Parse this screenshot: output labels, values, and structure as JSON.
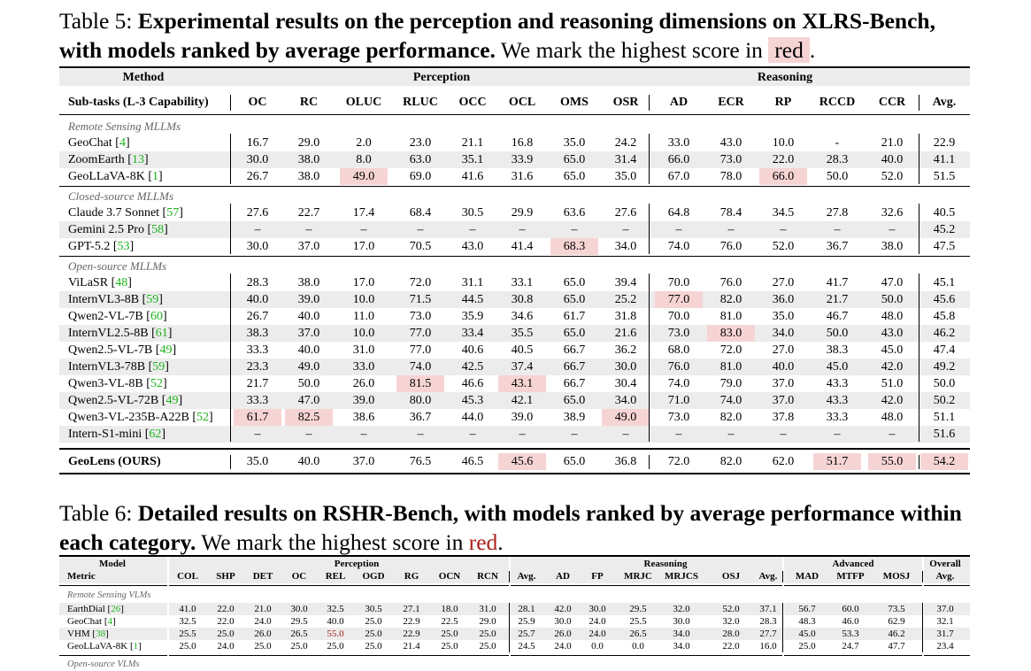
{
  "t5": {
    "prefix": "Table 5: ",
    "bold": "Experimental results on the perception and reasoning dimensions on XLRS-Bench, with models ranked by average performance.",
    "tail": " We mark the highest score in ",
    "mark": "red",
    "end": ".",
    "group_method": "Method",
    "group_perception": "Perception",
    "group_reasoning": "Reasoning",
    "sub_label": "Sub-tasks (L-3 Capability)",
    "cols": [
      "OC",
      "RC",
      "OLUC",
      "RLUC",
      "OCC",
      "OCL",
      "OMS",
      "OSR",
      "AD",
      "ECR",
      "RP",
      "RCCD",
      "CCR",
      "Avg."
    ],
    "sections": [
      {
        "title": "Remote Sensing MLLMs",
        "rows": [
          {
            "name": "GeoChat",
            "ref": "4",
            "v": [
              "16.7",
              "29.0",
              "2.0",
              "23.0",
              "21.1",
              "16.8",
              "35.0",
              "24.2",
              "33.0",
              "43.0",
              "10.0",
              "-",
              "21.0",
              "22.9"
            ],
            "hl": []
          },
          {
            "name": "ZoomEarth",
            "ref": "13",
            "v": [
              "30.0",
              "38.0",
              "8.0",
              "63.0",
              "35.1",
              "33.9",
              "65.0",
              "31.4",
              "66.0",
              "73.0",
              "22.0",
              "28.3",
              "40.0",
              "41.1"
            ],
            "hl": []
          },
          {
            "name": "GeoLLaVA-8K",
            "ref": "1",
            "v": [
              "26.7",
              "38.0",
              "49.0",
              "69.0",
              "41.6",
              "31.6",
              "65.0",
              "35.0",
              "67.0",
              "78.0",
              "66.0",
              "50.0",
              "52.0",
              "51.5"
            ],
            "hl": [
              2,
              10
            ]
          }
        ]
      },
      {
        "title": "Closed-source MLLMs",
        "rows": [
          {
            "name": "Claude 3.7 Sonnet",
            "ref": "57",
            "v": [
              "27.6",
              "22.7",
              "17.4",
              "68.4",
              "30.5",
              "29.9",
              "63.6",
              "27.6",
              "64.8",
              "78.4",
              "34.5",
              "27.8",
              "32.6",
              "40.5"
            ],
            "hl": []
          },
          {
            "name": "Gemini 2.5 Pro",
            "ref": "58",
            "v": [
              "–",
              "–",
              "–",
              "–",
              "–",
              "–",
              "–",
              "–",
              "–",
              "–",
              "–",
              "–",
              "–",
              "45.2"
            ],
            "hl": []
          },
          {
            "name": "GPT-5.2",
            "ref": "53",
            "v": [
              "30.0",
              "37.0",
              "17.0",
              "70.5",
              "43.0",
              "41.4",
              "68.3",
              "34.0",
              "74.0",
              "76.0",
              "52.0",
              "36.7",
              "38.0",
              "47.5"
            ],
            "hl": [
              6
            ]
          }
        ]
      },
      {
        "title": "Open-source MLLMs",
        "rows": [
          {
            "name": "ViLaSR",
            "ref": "48",
            "v": [
              "28.3",
              "38.0",
              "17.0",
              "72.0",
              "31.1",
              "33.1",
              "65.0",
              "39.4",
              "70.0",
              "76.0",
              "27.0",
              "41.7",
              "47.0",
              "45.1"
            ],
            "hl": []
          },
          {
            "name": "InternVL3-8B",
            "ref": "59",
            "v": [
              "40.0",
              "39.0",
              "10.0",
              "71.5",
              "44.5",
              "30.8",
              "65.0",
              "25.2",
              "77.0",
              "82.0",
              "36.0",
              "21.7",
              "50.0",
              "45.6"
            ],
            "hl": [
              8
            ]
          },
          {
            "name": "Qwen2-VL-7B",
            "ref": "60",
            "v": [
              "26.7",
              "40.0",
              "11.0",
              "73.0",
              "35.9",
              "34.6",
              "61.7",
              "31.8",
              "70.0",
              "81.0",
              "35.0",
              "46.7",
              "48.0",
              "45.8"
            ],
            "hl": []
          },
          {
            "name": "InternVL2.5-8B",
            "ref": "61",
            "v": [
              "38.3",
              "37.0",
              "10.0",
              "77.0",
              "33.4",
              "35.5",
              "65.0",
              "21.6",
              "73.0",
              "83.0",
              "34.0",
              "50.0",
              "43.0",
              "46.2"
            ],
            "hl": [
              9
            ]
          },
          {
            "name": "Qwen2.5-VL-7B",
            "ref": "49",
            "v": [
              "33.3",
              "40.0",
              "31.0",
              "77.0",
              "40.6",
              "40.5",
              "66.7",
              "36.2",
              "68.0",
              "72.0",
              "27.0",
              "38.3",
              "45.0",
              "47.4"
            ],
            "hl": []
          },
          {
            "name": "InternVL3-78B",
            "ref": "59",
            "v": [
              "23.3",
              "49.0",
              "33.0",
              "74.0",
              "42.5",
              "37.4",
              "66.7",
              "30.0",
              "76.0",
              "81.0",
              "40.0",
              "45.0",
              "42.0",
              "49.2"
            ],
            "hl": []
          },
          {
            "name": "Qwen3-VL-8B",
            "ref": "52",
            "v": [
              "21.7",
              "50.0",
              "26.0",
              "81.5",
              "46.6",
              "43.1",
              "66.7",
              "30.4",
              "74.0",
              "79.0",
              "37.0",
              "43.3",
              "51.0",
              "50.0"
            ],
            "hl": [
              3,
              5
            ]
          },
          {
            "name": "Qwen2.5-VL-72B",
            "ref": "49",
            "v": [
              "33.3",
              "47.0",
              "39.0",
              "80.0",
              "45.3",
              "42.1",
              "65.0",
              "34.0",
              "71.0",
              "74.0",
              "37.0",
              "43.3",
              "42.0",
              "50.2"
            ],
            "hl": []
          },
          {
            "name": "Qwen3-VL-235B-A22B",
            "ref": "52",
            "v": [
              "61.7",
              "82.5",
              "38.6",
              "36.7",
              "44.0",
              "39.0",
              "38.9",
              "49.0",
              "73.0",
              "82.0",
              "37.8",
              "33.3",
              "48.0",
              "51.1"
            ],
            "hl": [
              0,
              1,
              7
            ]
          },
          {
            "name": "Intern-S1-mini",
            "ref": "62",
            "v": [
              "–",
              "–",
              "–",
              "–",
              "–",
              "–",
              "–",
              "–",
              "–",
              "–",
              "–",
              "–",
              "–",
              "51.6"
            ],
            "hl": []
          }
        ]
      }
    ],
    "ours": {
      "name": "GeoLens (OURS)",
      "v": [
        "35.0",
        "40.0",
        "37.0",
        "76.5",
        "46.5",
        "45.6",
        "65.0",
        "36.8",
        "72.0",
        "82.0",
        "62.0",
        "51.7",
        "55.0",
        "54.2"
      ],
      "hl": [
        5,
        11,
        12,
        13
      ]
    }
  },
  "t6": {
    "prefix": "Table 6: ",
    "bold": "Detailed results on RSHR-Bench, with models ranked by average performance within each category.",
    "tail": " We mark the highest score in ",
    "mark": "red",
    "end": ".",
    "group_model": "Model",
    "group_perception": "Perception",
    "group_reasoning": "Reasoning",
    "group_advanced": "Advanced",
    "group_overall": "Overall",
    "metric_label": "Metric",
    "cols": [
      "COL",
      "SHP",
      "DET",
      "OC",
      "REL",
      "OGD",
      "RG",
      "OCN",
      "RCN",
      "Avg.",
      "AD",
      "FP",
      "MRJC",
      "MRJCS",
      "OSJ",
      "Avg.",
      "MAD",
      "MTFP",
      "MOSJ",
      "Avg."
    ],
    "section1": "Remote Sensing VLMs",
    "rows": [
      {
        "name": "EarthDial",
        "ref": "26",
        "v": [
          "41.0",
          "22.0",
          "21.0",
          "30.0",
          "32.5",
          "30.5",
          "27.1",
          "18.0",
          "31.0",
          "28.1",
          "42.0",
          "30.0",
          "29.5",
          "32.0",
          "52.0",
          "37.1",
          "56.7",
          "60.0",
          "73.5",
          "37.0"
        ],
        "red": []
      },
      {
        "name": "GeoChat",
        "ref": "4",
        "v": [
          "32.5",
          "22.0",
          "24.0",
          "29.5",
          "40.0",
          "25.0",
          "22.9",
          "22.5",
          "29.0",
          "25.9",
          "30.0",
          "24.0",
          "25.5",
          "30.0",
          "32.0",
          "28.3",
          "48.3",
          "46.0",
          "62.9",
          "32.1"
        ],
        "red": []
      },
      {
        "name": "VHM",
        "ref": "38",
        "v": [
          "25.5",
          "25.0",
          "26.0",
          "26.5",
          "55.0",
          "25.0",
          "22.9",
          "25.0",
          "25.0",
          "25.7",
          "26.0",
          "24.0",
          "26.5",
          "34.0",
          "28.0",
          "27.7",
          "45.0",
          "53.3",
          "46.2",
          "31.7"
        ],
        "red": [
          4
        ]
      },
      {
        "name": "GeoLLaVA-8K",
        "ref": "1",
        "v": [
          "25.0",
          "24.0",
          "25.0",
          "25.0",
          "25.0",
          "25.0",
          "21.4",
          "25.0",
          "25.0",
          "24.5",
          "24.0",
          "0.0",
          "0.0",
          "34.0",
          "22.0",
          "16.0",
          "25.0",
          "24.7",
          "47.7",
          "23.4"
        ],
        "red": []
      }
    ],
    "section2": "Open-source VLMs"
  }
}
